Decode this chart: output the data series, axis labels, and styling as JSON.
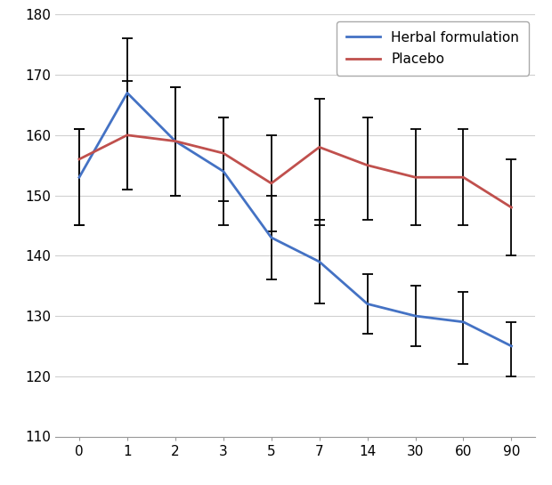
{
  "x_labels": [
    "0",
    "1",
    "2",
    "3",
    "5",
    "7",
    "14",
    "30",
    "60",
    "90"
  ],
  "herbal_y": [
    153,
    167,
    159,
    154,
    143,
    139,
    132,
    130,
    129,
    125
  ],
  "herbal_yerr_upper": [
    8,
    9,
    9,
    9,
    7,
    7,
    5,
    5,
    5,
    4
  ],
  "herbal_yerr_lower": [
    8,
    16,
    9,
    9,
    7,
    7,
    5,
    5,
    7,
    5
  ],
  "placebo_y": [
    156,
    160,
    159,
    157,
    152,
    158,
    155,
    153,
    153,
    148
  ],
  "placebo_yerr_upper": [
    5,
    9,
    9,
    6,
    8,
    8,
    8,
    8,
    8,
    8
  ],
  "placebo_yerr_lower": [
    11,
    9,
    9,
    8,
    8,
    13,
    9,
    8,
    8,
    8
  ],
  "herbal_color": "#4472C4",
  "placebo_color": "#C0504D",
  "errorbar_color": "#000000",
  "grid_color": "#D0D0D0",
  "ylim": [
    110,
    180
  ],
  "yticks": [
    110,
    120,
    130,
    140,
    150,
    160,
    170,
    180
  ],
  "legend_herbal": "Herbal formulation",
  "legend_placebo": "Placebo",
  "background_color": "#FFFFFF"
}
